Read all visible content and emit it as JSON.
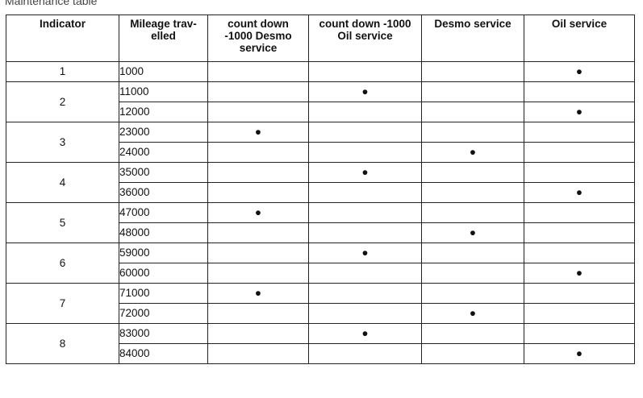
{
  "caption": "Maintenance table",
  "columns": [
    "Indicator",
    "Mileage trav-\nelled",
    "count down\n-1000 Desmo\nservice",
    "count down -1000\nOil service",
    "Desmo service",
    "Oil service"
  ],
  "bullet": "●",
  "groups": [
    {
      "indicator": "1",
      "rows": [
        {
          "mileage": "1000",
          "marks": [
            false,
            false,
            false,
            true
          ]
        }
      ]
    },
    {
      "indicator": "2",
      "rows": [
        {
          "mileage": "11000",
          "marks": [
            false,
            true,
            false,
            false
          ]
        },
        {
          "mileage": "12000",
          "marks": [
            false,
            false,
            false,
            true
          ]
        }
      ]
    },
    {
      "indicator": "3",
      "rows": [
        {
          "mileage": "23000",
          "marks": [
            true,
            false,
            false,
            false
          ]
        },
        {
          "mileage": "24000",
          "marks": [
            false,
            false,
            true,
            false
          ]
        }
      ]
    },
    {
      "indicator": "4",
      "rows": [
        {
          "mileage": "35000",
          "marks": [
            false,
            true,
            false,
            false
          ]
        },
        {
          "mileage": "36000",
          "marks": [
            false,
            false,
            false,
            true
          ]
        }
      ]
    },
    {
      "indicator": "5",
      "rows": [
        {
          "mileage": "47000",
          "marks": [
            true,
            false,
            false,
            false
          ]
        },
        {
          "mileage": "48000",
          "marks": [
            false,
            false,
            true,
            false
          ]
        }
      ]
    },
    {
      "indicator": "6",
      "rows": [
        {
          "mileage": "59000",
          "marks": [
            false,
            true,
            false,
            false
          ]
        },
        {
          "mileage": "60000",
          "marks": [
            false,
            false,
            false,
            true
          ]
        }
      ]
    },
    {
      "indicator": "7",
      "rows": [
        {
          "mileage": "71000",
          "marks": [
            true,
            false,
            false,
            false
          ]
        },
        {
          "mileage": "72000",
          "marks": [
            false,
            false,
            true,
            false
          ]
        }
      ]
    },
    {
      "indicator": "8",
      "rows": [
        {
          "mileage": "83000",
          "marks": [
            false,
            true,
            false,
            false
          ]
        },
        {
          "mileage": "84000",
          "marks": [
            false,
            false,
            false,
            true
          ]
        }
      ]
    }
  ]
}
